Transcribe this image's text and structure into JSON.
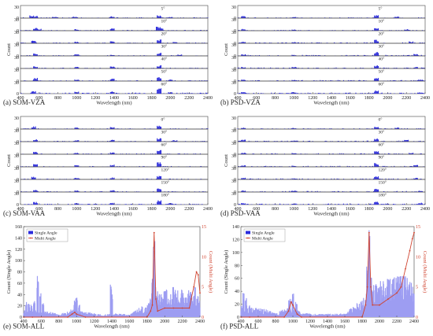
{
  "chart_data": [
    {
      "type": "bar",
      "panel_label": "(a) SOM-VZA",
      "xlabel": "Wavelength (nm)",
      "ylabel": "Count",
      "xlim": [
        400,
        2400
      ],
      "ylim": [
        0,
        30
      ],
      "x_ticks": [
        "400",
        "600",
        "800",
        "1000",
        "1200",
        "1400",
        "1600",
        "1800",
        "2000",
        "2200",
        "2400"
      ],
      "y_ticks": [
        "0",
        "30"
      ],
      "series": [
        {
          "name": "5°",
          "peaks": [
            [
              520,
              8
            ],
            [
              560,
              6
            ],
            [
              760,
              3
            ],
            [
              980,
              4
            ],
            [
              1380,
              5
            ],
            [
              1880,
              7
            ],
            [
              2000,
              3
            ]
          ],
          "noise": 2
        },
        {
          "name": "10°",
          "peaks": [
            [
              560,
              8
            ],
            [
              600,
              5
            ],
            [
              1000,
              4
            ],
            [
              1380,
              6
            ],
            [
              1870,
              12
            ],
            [
              1900,
              6
            ]
          ],
          "noise": 2
        },
        {
          "name": "20°",
          "peaks": [
            [
              540,
              7
            ],
            [
              1000,
              4
            ],
            [
              1380,
              5
            ],
            [
              1880,
              10
            ],
            [
              2050,
              4
            ]
          ],
          "noise": 2
        },
        {
          "name": "30°",
          "peaks": [
            [
              560,
              7
            ],
            [
              1000,
              5
            ],
            [
              1380,
              4
            ],
            [
              1880,
              8
            ],
            [
              2100,
              4
            ]
          ],
          "noise": 2
        },
        {
          "name": "40°",
          "peaks": [
            [
              560,
              6
            ],
            [
              1000,
              4
            ],
            [
              1380,
              5
            ],
            [
              1880,
              9
            ]
          ],
          "noise": 2
        },
        {
          "name": "50°",
          "peaks": [
            [
              560,
              8
            ],
            [
              1000,
              4
            ],
            [
              1380,
              6
            ],
            [
              1880,
              10
            ],
            [
              2000,
              4
            ]
          ],
          "noise": 2
        },
        {
          "name": "60°",
          "peaks": [
            [
              540,
              7
            ],
            [
              1000,
              5
            ],
            [
              1380,
              6
            ],
            [
              1880,
              16
            ],
            [
              2000,
              5
            ]
          ],
          "noise": 2.5
        }
      ]
    },
    {
      "type": "bar",
      "panel_label": "(b) PSD-VZA",
      "xlabel": "Wavelength (nm)",
      "ylabel": "Count",
      "xlim": [
        400,
        2400
      ],
      "ylim": [
        0,
        30
      ],
      "x_ticks": [
        "400",
        "600",
        "800",
        "1000",
        "1200",
        "1400",
        "1600",
        "1800",
        "2000",
        "2200",
        "2400"
      ],
      "y_ticks": [
        "0",
        "30"
      ],
      "series": [
        {
          "name": "5°",
          "peaks": [
            [
              460,
              6
            ],
            [
              1000,
              3
            ],
            [
              1880,
              8
            ],
            [
              2100,
              4
            ]
          ],
          "noise": 2
        },
        {
          "name": "10°",
          "peaks": [
            [
              460,
              5
            ],
            [
              1000,
              3
            ],
            [
              1880,
              7
            ],
            [
              2200,
              4
            ]
          ],
          "noise": 2
        },
        {
          "name": "20°",
          "peaks": [
            [
              460,
              5
            ],
            [
              1000,
              4
            ],
            [
              1880,
              9
            ],
            [
              2250,
              5
            ]
          ],
          "noise": 2.5
        },
        {
          "name": "30°",
          "peaks": [
            [
              460,
              4
            ],
            [
              1000,
              3
            ],
            [
              1880,
              10
            ],
            [
              2300,
              5
            ]
          ],
          "noise": 2.5
        },
        {
          "name": "40°",
          "peaks": [
            [
              460,
              4
            ],
            [
              1000,
              4
            ],
            [
              1880,
              9
            ],
            [
              2300,
              4
            ]
          ],
          "noise": 2.5
        },
        {
          "name": "50°",
          "peaks": [
            [
              460,
              4
            ],
            [
              1000,
              3
            ],
            [
              1880,
              8
            ],
            [
              2350,
              4
            ]
          ],
          "noise": 2.5
        },
        {
          "name": "60°",
          "peaks": [
            [
              460,
              4
            ],
            [
              1000,
              4
            ],
            [
              1880,
              9
            ],
            [
              2350,
              4
            ]
          ],
          "noise": 2.5
        }
      ]
    },
    {
      "type": "bar",
      "panel_label": "(c) SOM-VAA",
      "xlabel": "Wavelength (nm)",
      "ylabel": "Count",
      "xlim": [
        400,
        2400
      ],
      "ylim": [
        0,
        30
      ],
      "x_ticks": [
        "400",
        "600",
        "800",
        "1000",
        "1200",
        "1400",
        "1600",
        "1800",
        "2000",
        "2200",
        "2400"
      ],
      "y_ticks": [
        "0",
        "30"
      ],
      "series": [
        {
          "name": "0°",
          "peaks": [
            [
              540,
              7
            ],
            [
              1000,
              4
            ],
            [
              1380,
              6
            ],
            [
              1880,
              9
            ]
          ],
          "noise": 2
        },
        {
          "name": "30°",
          "peaks": [
            [
              560,
              6
            ],
            [
              1000,
              4
            ],
            [
              1380,
              5
            ],
            [
              1880,
              10
            ],
            [
              2050,
              4
            ]
          ],
          "noise": 2
        },
        {
          "name": "60°",
          "peaks": [
            [
              560,
              7
            ],
            [
              1000,
              4
            ],
            [
              1380,
              5
            ],
            [
              1880,
              11
            ]
          ],
          "noise": 2
        },
        {
          "name": "90°",
          "peaks": [
            [
              560,
              8
            ],
            [
              1000,
              5
            ],
            [
              1380,
              6
            ],
            [
              1880,
              12
            ]
          ],
          "noise": 2
        },
        {
          "name": "120°",
          "peaks": [
            [
              540,
              7
            ],
            [
              1000,
              4
            ],
            [
              1380,
              5
            ],
            [
              1880,
              9
            ]
          ],
          "noise": 2
        },
        {
          "name": "150°",
          "peaks": [
            [
              560,
              6
            ],
            [
              1000,
              4
            ],
            [
              1380,
              6
            ],
            [
              1880,
              10
            ]
          ],
          "noise": 2
        },
        {
          "name": "180°",
          "peaks": [
            [
              560,
              7
            ],
            [
              1000,
              4
            ],
            [
              1380,
              5
            ],
            [
              1880,
              11
            ],
            [
              2000,
              4
            ]
          ],
          "noise": 2
        }
      ]
    },
    {
      "type": "bar",
      "panel_label": "(d) PSD-VAA",
      "xlabel": "Wavelength (nm)",
      "ylabel": "Count",
      "xlim": [
        400,
        2400
      ],
      "ylim": [
        0,
        30
      ],
      "x_ticks": [
        "400",
        "600",
        "800",
        "1000",
        "1200",
        "1400",
        "1600",
        "1800",
        "2000",
        "2200",
        "2400"
      ],
      "y_ticks": [
        "0",
        "30"
      ],
      "series": [
        {
          "name": "0°",
          "peaks": [
            [
              460,
              4
            ],
            [
              1000,
              3
            ],
            [
              1880,
              7
            ],
            [
              2100,
              4
            ]
          ],
          "noise": 2
        },
        {
          "name": "30°",
          "peaks": [
            [
              460,
              5
            ],
            [
              1000,
              3
            ],
            [
              1880,
              8
            ],
            [
              2200,
              5
            ]
          ],
          "noise": 2.5
        },
        {
          "name": "60°",
          "peaks": [
            [
              460,
              4
            ],
            [
              1000,
              4
            ],
            [
              1880,
              9
            ],
            [
              2250,
              4
            ]
          ],
          "noise": 2.5
        },
        {
          "name": "90°",
          "peaks": [
            [
              460,
              4
            ],
            [
              1000,
              3
            ],
            [
              1880,
              10
            ],
            [
              2300,
              5
            ]
          ],
          "noise": 2.5
        },
        {
          "name": "120°",
          "peaks": [
            [
              460,
              5
            ],
            [
              1000,
              3
            ],
            [
              1880,
              8
            ],
            [
              2300,
              4
            ]
          ],
          "noise": 2.5
        },
        {
          "name": "150°",
          "peaks": [
            [
              460,
              4
            ],
            [
              1000,
              4
            ],
            [
              1880,
              9
            ],
            [
              2350,
              4
            ]
          ],
          "noise": 2.5
        },
        {
          "name": "180°",
          "peaks": [
            [
              460,
              4
            ],
            [
              1000,
              3
            ],
            [
              1880,
              8
            ],
            [
              2350,
              5
            ]
          ],
          "noise": 2.5
        }
      ]
    },
    {
      "type": "bar+line",
      "panel_label": "(e) SOM-ALL",
      "xlabel": "Wavelength (nm)",
      "ylabel": "Count (Single Angle)",
      "y2label": "Count (Multi Angle)",
      "xlim": [
        400,
        2400
      ],
      "ylim": [
        0,
        160
      ],
      "y2lim": [
        0,
        15
      ],
      "x_ticks": [
        "400",
        "600",
        "800",
        "1000",
        "1200",
        "1400",
        "1600",
        "1800",
        "2000",
        "2200",
        "2400"
      ],
      "y_ticks": [
        "0",
        "20",
        "40",
        "60",
        "80",
        "100",
        "120",
        "140",
        "160"
      ],
      "y2_ticks": [
        "0",
        "5",
        "10",
        "15"
      ],
      "legend": [
        "Single Angle",
        "Multi Angle"
      ],
      "legend_position": "top-left",
      "bar_peaks": [
        [
          430,
          30
        ],
        [
          460,
          25
        ],
        [
          490,
          22
        ],
        [
          520,
          35
        ],
        [
          560,
          80
        ],
        [
          590,
          45
        ],
        [
          620,
          25
        ],
        [
          980,
          30
        ],
        [
          1000,
          35
        ],
        [
          1030,
          22
        ],
        [
          1390,
          60
        ],
        [
          1400,
          40
        ],
        [
          1860,
          70
        ],
        [
          1880,
          150
        ],
        [
          1890,
          60
        ],
        [
          1920,
          45
        ],
        [
          2000,
          50
        ],
        [
          2100,
          55
        ],
        [
          2200,
          55
        ],
        [
          2300,
          50
        ],
        [
          2340,
          55
        ]
      ],
      "bar_noise_profile": [
        [
          400,
          12
        ],
        [
          700,
          8
        ],
        [
          800,
          4
        ],
        [
          950,
          12
        ],
        [
          1100,
          8
        ],
        [
          1300,
          4
        ],
        [
          1420,
          6
        ],
        [
          1600,
          4
        ],
        [
          1800,
          22
        ],
        [
          1900,
          40
        ],
        [
          2100,
          42
        ],
        [
          2300,
          40
        ],
        [
          2400,
          30
        ]
      ],
      "line_points": [
        [
          400,
          0
        ],
        [
          500,
          0
        ],
        [
          900,
          0
        ],
        [
          950,
          0.5
        ],
        [
          980,
          0.8
        ],
        [
          1000,
          0.5
        ],
        [
          1100,
          0
        ],
        [
          1800,
          0
        ],
        [
          1840,
          1
        ],
        [
          1860,
          2
        ],
        [
          1880,
          14
        ],
        [
          1900,
          3
        ],
        [
          1920,
          1
        ],
        [
          2000,
          1.5
        ],
        [
          2100,
          1.5
        ],
        [
          2200,
          1.5
        ],
        [
          2280,
          1.5
        ],
        [
          2300,
          3
        ],
        [
          2330,
          5
        ],
        [
          2360,
          7.5
        ],
        [
          2380,
          7
        ],
        [
          2400,
          4
        ]
      ]
    },
    {
      "type": "bar+line",
      "panel_label": "(f) PSD-ALL",
      "xlabel": "Wavelength (nm)",
      "ylabel": "Count (Single Angle)",
      "y2label": "Count (Multi Angle)",
      "xlim": [
        400,
        2400
      ],
      "ylim": [
        0,
        140
      ],
      "y2lim": [
        0,
        15
      ],
      "x_ticks": [
        "400",
        "600",
        "800",
        "1000",
        "1200",
        "1400",
        "1600",
        "1800",
        "2000",
        "2200",
        "2400"
      ],
      "y_ticks": [
        "0",
        "20",
        "40",
        "60",
        "80",
        "100",
        "120",
        "140"
      ],
      "y2_ticks": [
        "0",
        "5",
        "10",
        "15"
      ],
      "legend": [
        "Single Angle",
        "Multi Angle"
      ],
      "legend_position": "top-left",
      "bar_peaks": [
        [
          430,
          40
        ],
        [
          460,
          30
        ],
        [
          500,
          20
        ],
        [
          960,
          35
        ],
        [
          1000,
          40
        ],
        [
          1040,
          25
        ],
        [
          1860,
          80
        ],
        [
          1880,
          140
        ],
        [
          1900,
          70
        ],
        [
          2000,
          50
        ],
        [
          2100,
          60
        ],
        [
          2200,
          65
        ],
        [
          2300,
          70
        ],
        [
          2340,
          60
        ]
      ],
      "bar_noise_profile": [
        [
          400,
          15
        ],
        [
          700,
          10
        ],
        [
          800,
          5
        ],
        [
          950,
          15
        ],
        [
          1100,
          6
        ],
        [
          1300,
          4
        ],
        [
          1600,
          5
        ],
        [
          1800,
          25
        ],
        [
          1900,
          45
        ],
        [
          2100,
          50
        ],
        [
          2300,
          55
        ],
        [
          2400,
          40
        ]
      ],
      "line_points": [
        [
          400,
          0
        ],
        [
          500,
          0
        ],
        [
          900,
          0
        ],
        [
          950,
          1
        ],
        [
          980,
          2.5
        ],
        [
          1000,
          2
        ],
        [
          1050,
          0.5
        ],
        [
          1100,
          0
        ],
        [
          1800,
          0
        ],
        [
          1840,
          2
        ],
        [
          1860,
          5
        ],
        [
          1880,
          14
        ],
        [
          1900,
          5
        ],
        [
          1920,
          2
        ],
        [
          2000,
          2
        ],
        [
          2100,
          3
        ],
        [
          2200,
          4
        ],
        [
          2250,
          5
        ],
        [
          2300,
          8
        ],
        [
          2350,
          11
        ],
        [
          2380,
          13
        ],
        [
          2400,
          14
        ]
      ]
    }
  ]
}
